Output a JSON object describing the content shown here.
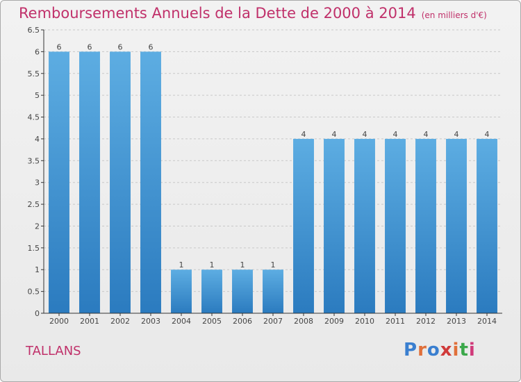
{
  "title": "Remboursements Annuels de la Dette de 2000 à 2014",
  "unit": "(en milliers d'€)",
  "commune": "TALLANS",
  "logo": {
    "letters": [
      "P",
      "r",
      "o",
      "x",
      "i",
      "t",
      "i"
    ],
    "text": "Proxiti",
    "colors": [
      "#3a7fd0",
      "#e0703a",
      "#3a7fd0",
      "#d03a3a",
      "#e0703a",
      "#3aa84a",
      "#d03a7a"
    ]
  },
  "chart_data": {
    "type": "bar",
    "title": "Remboursements Annuels de la Dette de 2000 à 2014",
    "xlabel": "",
    "ylabel": "",
    "categories": [
      "2000",
      "2001",
      "2002",
      "2003",
      "2004",
      "2005",
      "2006",
      "2007",
      "2008",
      "2009",
      "2010",
      "2011",
      "2012",
      "2013",
      "2014"
    ],
    "values": [
      6,
      6,
      6,
      6,
      1,
      1,
      1,
      1,
      4,
      4,
      4,
      4,
      4,
      4,
      4
    ],
    "value_labels": [
      "6",
      "6",
      "6",
      "6",
      "1",
      "1",
      "1",
      "1",
      "4",
      "4",
      "4",
      "4",
      "4",
      "4",
      "4"
    ],
    "ylim": [
      0,
      6.5
    ],
    "yticks": [
      0,
      0.5,
      1,
      1.5,
      2,
      2.5,
      3,
      3.5,
      4,
      4.5,
      5,
      5.5,
      6,
      6.5
    ],
    "ytick_labels": [
      "0",
      "0.5",
      "1",
      "1.5",
      "2",
      "2.5",
      "3",
      "3.5",
      "4",
      "4.5",
      "5",
      "5.5",
      "6",
      "6.5"
    ],
    "grid": "horizontal dashed",
    "colors": {
      "bar_light": "#5dade2",
      "bar_dark": "#2b7bbf",
      "grid": "#c8c8c8",
      "axis": "#333333"
    }
  }
}
